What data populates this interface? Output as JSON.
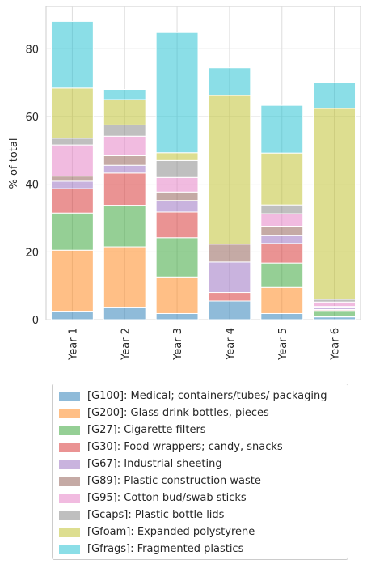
{
  "chart_data": {
    "type": "stacked-bar",
    "title": "",
    "xlabel": "",
    "ylabel": "% of total",
    "ylim": [
      0,
      92.5
    ],
    "yticks": [
      0,
      20,
      40,
      60,
      80
    ],
    "grid": true,
    "legend_position": "bottom",
    "categories": [
      "Year 1",
      "Year 2",
      "Year 3",
      "Year 4",
      "Year 5",
      "Year 6"
    ],
    "series": [
      {
        "name": "[G100]: Medical; containers/tubes/ packaging",
        "color": "#1f77b4",
        "values": [
          2.5,
          3.5,
          1.8,
          5.5,
          1.8,
          0.8
        ]
      },
      {
        "name": "[G200]: Glass drink bottles, pieces",
        "color": "#ff7f0e",
        "values": [
          18.0,
          18.0,
          10.8,
          0.0,
          7.7,
          0.2
        ]
      },
      {
        "name": "[G27]: Cigarette filters",
        "color": "#2ca02c",
        "values": [
          11.0,
          12.3,
          11.6,
          0.0,
          7.2,
          1.7
        ]
      },
      {
        "name": "[G30]: Food wrappers; candy, snacks",
        "color": "#d62728",
        "values": [
          7.2,
          9.5,
          7.6,
          2.5,
          5.8,
          0.3
        ]
      },
      {
        "name": "[G67]: Industrial sheeting",
        "color": "#9467bd",
        "values": [
          2.2,
          2.3,
          3.4,
          9.0,
          2.3,
          0.5
        ]
      },
      {
        "name": "[G89]: Plastic construction waste",
        "color": "#8c564b",
        "values": [
          1.5,
          2.8,
          2.5,
          5.3,
          2.8,
          0.4
        ]
      },
      {
        "name": "[G95]: Cotton bud/swab sticks",
        "color": "#e377c2",
        "values": [
          9.2,
          5.8,
          4.3,
          0.0,
          3.7,
          1.3
        ]
      },
      {
        "name": "[Gcaps]: Plastic bottle lids",
        "color": "#7f7f7f",
        "values": [
          2.0,
          3.3,
          5.0,
          0.0,
          2.6,
          0.8
        ]
      },
      {
        "name": "[Gfoam]: Expanded polystyrene",
        "color": "#bcbd22",
        "values": [
          14.8,
          7.5,
          2.3,
          43.9,
          15.3,
          56.4
        ]
      },
      {
        "name": "[Gfrags]: Fragmented plastics",
        "color": "#17becf",
        "values": [
          19.7,
          3.0,
          35.5,
          8.2,
          14.1,
          7.6
        ]
      }
    ]
  }
}
